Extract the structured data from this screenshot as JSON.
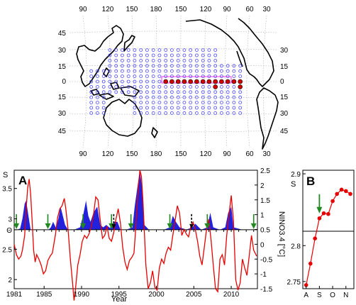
{
  "map": {
    "top_lon_labels": [
      "90",
      "120",
      "150",
      "180",
      "150",
      "120",
      "90",
      "60",
      "30"
    ],
    "bottom_lon_labels": [
      "90",
      "120",
      "150",
      "180",
      "150",
      "120",
      "90",
      "60",
      "30"
    ],
    "left_lat_labels": [
      "45",
      "30",
      "15",
      "0",
      "15",
      "30",
      "45"
    ],
    "right_lat_labels": [
      "30",
      "15",
      "0",
      "15",
      "30",
      "45"
    ],
    "colors": {
      "grid_node": "#4444ff",
      "index_node": "#d40000",
      "index_box": "#ff33ff",
      "coast": "#000000"
    }
  },
  "chart_data": [
    {
      "type": "line",
      "panel_label": "A",
      "xlabel": "Year",
      "ylabel_left": "S",
      "ylabel_right": "NINO3.4 [°C]",
      "x_ticks": [
        "1981",
        "1985",
        "1990",
        "1995",
        "2000",
        "2005",
        "2010"
      ],
      "xlim": [
        1981,
        2013.5
      ],
      "left_ticks": [
        "3.5",
        "3",
        "Θ",
        "2.5",
        "2"
      ],
      "left_tick_values": [
        3.5,
        3.0,
        2.82,
        2.5,
        2.0
      ],
      "ylim_left": [
        1.85,
        3.8
      ],
      "right_ticks": [
        "2.5",
        "2",
        "1.5",
        "1",
        "0.5",
        "0",
        "-0.5",
        "-1",
        "-1.5"
      ],
      "right_tick_values": [
        2.5,
        2.0,
        1.5,
        1.0,
        0.5,
        0.0,
        -0.5,
        -1.0,
        -1.5
      ],
      "ylim_right": [
        -1.5,
        2.5
      ],
      "threshold_theta": 2.82,
      "colors": {
        "S_fill": "#2222dd",
        "nino_line": "#e80000",
        "arrow": "#228822"
      },
      "series": [
        {
          "name": "S",
          "style": "filled-above-threshold",
          "points": [
            [
              1981.0,
              2.3
            ],
            [
              1981.4,
              2.6
            ],
            [
              1981.8,
              2.84
            ],
            [
              1982.1,
              3.0
            ],
            [
              1982.4,
              3.25
            ],
            [
              1982.6,
              3.3
            ],
            [
              1982.9,
              3.05
            ],
            [
              1983.2,
              2.6
            ],
            [
              1984.0,
              2.4
            ],
            [
              1985.0,
              2.5
            ],
            [
              1985.6,
              2.7
            ],
            [
              1985.9,
              2.86
            ],
            [
              1986.2,
              2.95
            ],
            [
              1986.6,
              2.85
            ],
            [
              1986.9,
              3.0
            ],
            [
              1987.2,
              3.2
            ],
            [
              1987.5,
              3.05
            ],
            [
              1987.8,
              2.9
            ],
            [
              1988.2,
              2.8
            ],
            [
              1989.0,
              2.7
            ],
            [
              1989.8,
              2.86
            ],
            [
              1990.2,
              3.05
            ],
            [
              1990.6,
              3.3
            ],
            [
              1990.9,
              3.05
            ],
            [
              1991.2,
              2.95
            ],
            [
              1991.6,
              3.1
            ],
            [
              1992.1,
              3.2
            ],
            [
              1992.5,
              2.9
            ],
            [
              1992.9,
              2.86
            ],
            [
              1993.3,
              2.9
            ],
            [
              1993.8,
              2.85
            ],
            [
              1994.3,
              2.95
            ],
            [
              1994.8,
              2.95
            ],
            [
              1995.2,
              2.75
            ],
            [
              1996.0,
              2.6
            ],
            [
              1996.8,
              2.86
            ],
            [
              1997.1,
              3.2
            ],
            [
              1997.5,
              3.55
            ],
            [
              1997.8,
              3.78
            ],
            [
              1998.1,
              3.5
            ],
            [
              1998.4,
              2.9
            ],
            [
              1999.0,
              2.6
            ],
            [
              2000.0,
              2.55
            ],
            [
              2001.0,
              2.7
            ],
            [
              2001.8,
              2.86
            ],
            [
              2002.2,
              3.05
            ],
            [
              2002.6,
              2.95
            ],
            [
              2003.1,
              2.86
            ],
            [
              2004.0,
              2.7
            ],
            [
              2004.8,
              2.86
            ],
            [
              2005.2,
              2.92
            ],
            [
              2006.0,
              2.7
            ],
            [
              2006.8,
              2.86
            ],
            [
              2007.2,
              3.1
            ],
            [
              2007.6,
              2.86
            ],
            [
              2008.5,
              2.6
            ],
            [
              2009.2,
              2.86
            ],
            [
              2009.6,
              3.1
            ],
            [
              2010.0,
              3.2
            ],
            [
              2010.3,
              2.86
            ],
            [
              2011.5,
              2.6
            ],
            [
              2012.4,
              2.75
            ],
            [
              2013.0,
              2.7
            ]
          ]
        },
        {
          "name": "NINO3.4",
          "style": "line",
          "points": [
            [
              1981.0,
              0.0
            ],
            [
              1981.3,
              -0.35
            ],
            [
              1981.6,
              -0.5
            ],
            [
              1981.9,
              -0.4
            ],
            [
              1982.1,
              -0.2
            ],
            [
              1982.4,
              0.3
            ],
            [
              1982.6,
              1.2
            ],
            [
              1982.8,
              1.9
            ],
            [
              1983.0,
              2.2
            ],
            [
              1983.2,
              1.7
            ],
            [
              1983.4,
              0.8
            ],
            [
              1983.6,
              -0.2
            ],
            [
              1983.8,
              -0.6
            ],
            [
              1984.0,
              -0.35
            ],
            [
              1984.3,
              -0.5
            ],
            [
              1984.6,
              -0.7
            ],
            [
              1984.9,
              -1.0
            ],
            [
              1985.2,
              -0.9
            ],
            [
              1985.5,
              -0.55
            ],
            [
              1985.8,
              -0.4
            ],
            [
              1986.1,
              -0.3
            ],
            [
              1986.5,
              0.3
            ],
            [
              1986.8,
              0.9
            ],
            [
              1987.1,
              1.2
            ],
            [
              1987.4,
              1.3
            ],
            [
              1987.7,
              1.55
            ],
            [
              1987.9,
              1.2
            ],
            [
              1988.2,
              0.5
            ],
            [
              1988.5,
              -0.5
            ],
            [
              1988.8,
              -1.3
            ],
            [
              1989.0,
              -1.9
            ],
            [
              1989.2,
              -1.5
            ],
            [
              1989.5,
              -0.7
            ],
            [
              1989.8,
              -0.35
            ],
            [
              1990.1,
              0.1
            ],
            [
              1990.4,
              0.3
            ],
            [
              1990.7,
              0.2
            ],
            [
              1991.0,
              0.35
            ],
            [
              1991.3,
              0.6
            ],
            [
              1991.6,
              1.0
            ],
            [
              1991.9,
              1.6
            ],
            [
              1992.2,
              1.5
            ],
            [
              1992.5,
              0.8
            ],
            [
              1992.8,
              0.2
            ],
            [
              1993.1,
              0.3
            ],
            [
              1993.4,
              0.6
            ],
            [
              1993.7,
              0.2
            ],
            [
              1994.0,
              0.1
            ],
            [
              1994.3,
              0.4
            ],
            [
              1994.6,
              0.85
            ],
            [
              1994.9,
              1.2
            ],
            [
              1995.2,
              0.7
            ],
            [
              1995.5,
              -0.1
            ],
            [
              1995.8,
              -0.6
            ],
            [
              1996.1,
              -0.85
            ],
            [
              1996.4,
              -0.55
            ],
            [
              1996.7,
              -0.45
            ],
            [
              1997.0,
              -0.3
            ],
            [
              1997.2,
              0.4
            ],
            [
              1997.4,
              1.2
            ],
            [
              1997.6,
              2.0
            ],
            [
              1997.8,
              2.5
            ],
            [
              1998.0,
              2.3
            ],
            [
              1998.2,
              1.5
            ],
            [
              1998.4,
              0.4
            ],
            [
              1998.6,
              -0.7
            ],
            [
              1998.9,
              -1.5
            ],
            [
              1999.2,
              -1.3
            ],
            [
              1999.5,
              -0.9
            ],
            [
              1999.8,
              -1.45
            ],
            [
              2000.1,
              -1.55
            ],
            [
              2000.4,
              -0.8
            ],
            [
              2000.7,
              -0.5
            ],
            [
              2001.0,
              -0.65
            ],
            [
              2001.3,
              -0.3
            ],
            [
              2001.6,
              -0.1
            ],
            [
              2001.9,
              -0.2
            ],
            [
              2002.2,
              0.3
            ],
            [
              2002.5,
              0.8
            ],
            [
              2002.8,
              1.3
            ],
            [
              2003.1,
              1.05
            ],
            [
              2003.4,
              0.3
            ],
            [
              2003.7,
              0.5
            ],
            [
              2004.0,
              0.35
            ],
            [
              2004.3,
              0.25
            ],
            [
              2004.6,
              0.6
            ],
            [
              2004.9,
              0.75
            ],
            [
              2005.2,
              0.5
            ],
            [
              2005.5,
              0.1
            ],
            [
              2005.8,
              -0.4
            ],
            [
              2006.1,
              -0.7
            ],
            [
              2006.4,
              -0.1
            ],
            [
              2006.7,
              0.5
            ],
            [
              2007.0,
              0.85
            ],
            [
              2007.3,
              0.15
            ],
            [
              2007.6,
              -0.7
            ],
            [
              2007.9,
              -1.5
            ],
            [
              2008.2,
              -1.6
            ],
            [
              2008.5,
              -0.5
            ],
            [
              2008.8,
              -0.35
            ],
            [
              2009.1,
              -0.7
            ],
            [
              2009.4,
              0.3
            ],
            [
              2009.7,
              1.0
            ],
            [
              2010.0,
              1.65
            ],
            [
              2010.3,
              0.8
            ],
            [
              2010.6,
              -1.2
            ],
            [
              2010.9,
              -1.55
            ],
            [
              2011.2,
              -1.3
            ],
            [
              2011.5,
              -0.5
            ],
            [
              2011.8,
              -0.8
            ],
            [
              2012.1,
              -1.05
            ],
            [
              2012.4,
              -0.4
            ],
            [
              2012.7,
              0.3
            ],
            [
              2013.0,
              -0.2
            ],
            [
              2013.4,
              -0.4
            ]
          ]
        }
      ],
      "arrows": [
        {
          "x": 1981.3,
          "y": 2.82,
          "style": "solid"
        },
        {
          "x": 1985.5,
          "y": 2.82,
          "style": "solid"
        },
        {
          "x": 1990.2,
          "y": 2.82,
          "style": "solid"
        },
        {
          "x": 1994.0,
          "y": 2.82,
          "style": "solid"
        },
        {
          "x": 1994.3,
          "y": 2.82,
          "style": "dashed"
        },
        {
          "x": 1996.6,
          "y": 2.82,
          "style": "solid"
        },
        {
          "x": 2001.8,
          "y": 2.82,
          "style": "solid"
        },
        {
          "x": 2004.7,
          "y": 2.82,
          "style": "dashed"
        },
        {
          "x": 2006.8,
          "y": 2.82,
          "style": "solid"
        },
        {
          "x": 2013.0,
          "y": 2.82,
          "style": "solid"
        }
      ]
    },
    {
      "type": "scatter",
      "panel_label": "B",
      "ylabel": "S",
      "categories": [
        "A",
        "S",
        "O",
        "N"
      ],
      "y_ticks": [
        "2.9",
        "2.8",
        "2.75"
      ],
      "y_tick_values": [
        2.9,
        2.8,
        2.75
      ],
      "ylim": [
        2.74,
        2.905
      ],
      "threshold_theta": 2.82,
      "x": [
        0,
        0.33,
        0.67,
        1.0,
        1.33,
        1.67,
        2.0,
        2.33,
        2.67,
        3.0,
        3.33
      ],
      "values": [
        2.745,
        2.775,
        2.81,
        2.838,
        2.845,
        2.844,
        2.862,
        2.872,
        2.878,
        2.876,
        2.872
      ],
      "arrow": {
        "x": 1.0,
        "y": 2.842
      },
      "colors": {
        "point": "#e80000",
        "line": "#e80000",
        "arrow": "#228822"
      }
    }
  ]
}
